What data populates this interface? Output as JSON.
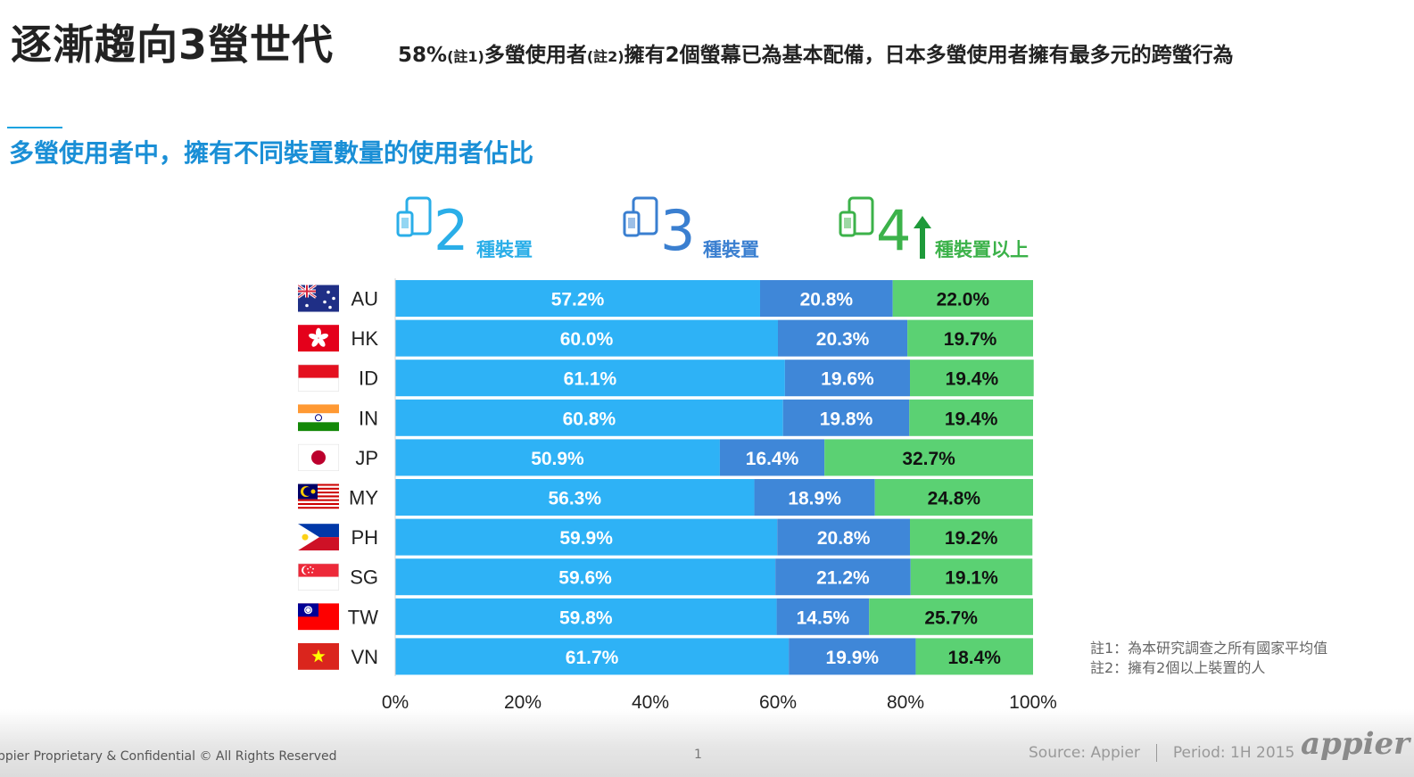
{
  "header": {
    "title": "逐漸趨向3螢世代",
    "subtitle_parts": [
      "58%",
      "(註1)",
      "多螢使用者",
      "(註2)",
      "擁有2個螢幕已為基本配備，日本多螢使用者擁有最多元的跨螢行為"
    ]
  },
  "section_title": "多螢使用者中，擁有不同裝置數量的使用者佔比",
  "legend": [
    {
      "number": "2",
      "label": "種裝置",
      "color": "#2aaee8"
    },
    {
      "number": "3",
      "label": "種裝置",
      "color": "#3a7fd0"
    },
    {
      "number": "4",
      "label": "種裝置以上",
      "color": "#3cb24a"
    }
  ],
  "chart_data": {
    "type": "bar",
    "orientation": "horizontal",
    "stacked": true,
    "categories": [
      "AU",
      "HK",
      "ID",
      "IN",
      "JP",
      "MY",
      "PH",
      "SG",
      "TW",
      "VN"
    ],
    "series": [
      {
        "name": "2種裝置",
        "color": "#2eb2f6",
        "values": [
          57.2,
          60.0,
          61.1,
          60.8,
          50.9,
          56.3,
          59.9,
          59.6,
          59.8,
          61.7
        ]
      },
      {
        "name": "3種裝置",
        "color": "#3f87d8",
        "values": [
          20.8,
          20.3,
          19.6,
          19.8,
          16.4,
          18.9,
          20.8,
          21.2,
          14.5,
          19.9
        ]
      },
      {
        "name": "4種裝置以上",
        "color": "#5bd173",
        "values": [
          22.0,
          19.7,
          19.4,
          19.4,
          32.7,
          24.8,
          19.2,
          19.1,
          25.7,
          18.4
        ]
      }
    ],
    "data_labels": [
      [
        "57.2%",
        "20.8%",
        "22.0%"
      ],
      [
        "60.0%",
        "20.3%",
        "19.7%"
      ],
      [
        "61.1%",
        "19.6%",
        "19.4%"
      ],
      [
        "60.8%",
        "19.8%",
        "19.4%"
      ],
      [
        "50.9%",
        "16.4%",
        "32.7%"
      ],
      [
        "56.3%",
        "18.9%",
        "24.8%"
      ],
      [
        "59.9%",
        "20.8%",
        "19.2%"
      ],
      [
        "59.6%",
        "21.2%",
        "19.1%"
      ],
      [
        "59.8%",
        "14.5%",
        "25.7%"
      ],
      [
        "61.7%",
        "19.9%",
        "18.4%"
      ]
    ],
    "xlim": [
      0,
      100
    ],
    "xticks": [
      "0%",
      "20%",
      "40%",
      "60%",
      "80%",
      "100%"
    ],
    "xlabel": "",
    "ylabel": ""
  },
  "notes": [
    "註1：為本研究調查之所有國家平均值",
    "註2：擁有2個以上裝置的人"
  ],
  "footer": {
    "left": "ppier Proprietary & Confidential © All Rights Reserved",
    "page": "1",
    "source": "Source: Appier",
    "period": "Period: 1H 2015",
    "logo": "appier"
  }
}
